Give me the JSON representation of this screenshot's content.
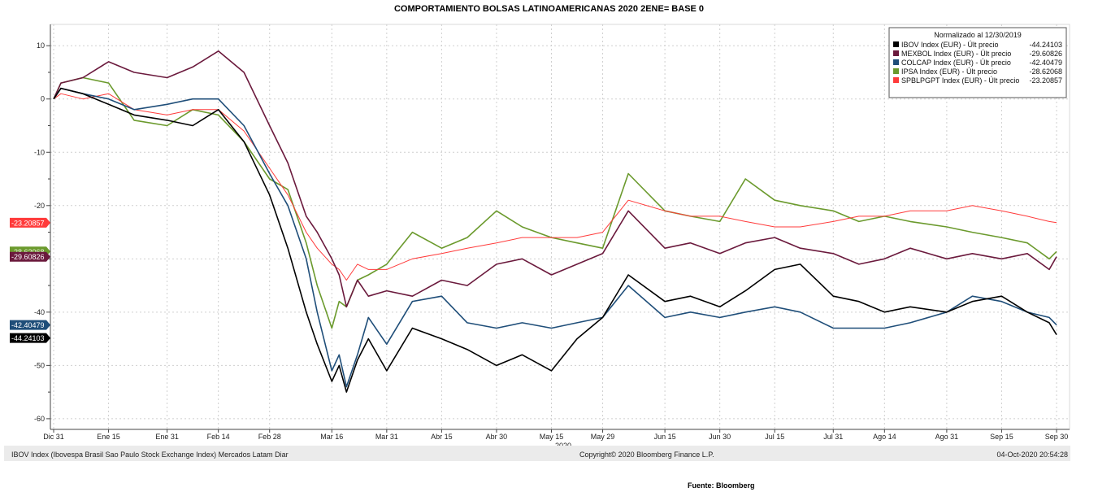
{
  "chart_data": {
    "type": "line",
    "title": "COMPORTAMIENTO BOLSAS LATINOAMERICANAS 2020   2ENE= BASE 0",
    "year_label": "2020",
    "x_ticks": [
      "Dic 31",
      "Ene 15",
      "Ene 31",
      "Feb 14",
      "Feb 28",
      "Mar 16",
      "Mar 31",
      "Abr 15",
      "Abr 30",
      "May 15",
      "May 29",
      "Jun 15",
      "Jun 30",
      "Jul 15",
      "Jul 31",
      "Ago 14",
      "Ago 31",
      "Sep 15",
      "Sep 30"
    ],
    "y_ticks": [
      10,
      0,
      -10,
      -20,
      -30,
      -40,
      -50,
      -60
    ],
    "ylim": [
      -62,
      14
    ],
    "grid": true,
    "legend_position": "top-right",
    "legend_header": "Normalizado al 12/30/2019",
    "series": [
      {
        "name": "IBOV Index (EUR) - Últ precio",
        "last_value": "-44.24103",
        "color": "#000000",
        "x": [
          "2019-12-31",
          "2020-01-02",
          "2020-01-08",
          "2020-01-15",
          "2020-01-22",
          "2020-01-31",
          "2020-02-07",
          "2020-02-14",
          "2020-02-21",
          "2020-02-28",
          "2020-03-04",
          "2020-03-09",
          "2020-03-12",
          "2020-03-16",
          "2020-03-18",
          "2020-03-20",
          "2020-03-23",
          "2020-03-26",
          "2020-03-31",
          "2020-04-07",
          "2020-04-15",
          "2020-04-22",
          "2020-04-30",
          "2020-05-07",
          "2020-05-15",
          "2020-05-22",
          "2020-05-29",
          "2020-06-05",
          "2020-06-15",
          "2020-06-22",
          "2020-06-30",
          "2020-07-07",
          "2020-07-15",
          "2020-07-22",
          "2020-07-31",
          "2020-08-07",
          "2020-08-14",
          "2020-08-21",
          "2020-08-31",
          "2020-09-07",
          "2020-09-15",
          "2020-09-22",
          "2020-09-28",
          "2020-09-30"
        ],
        "y": [
          0,
          2,
          1,
          -1,
          -3,
          -4,
          -5,
          -2,
          -8,
          -18,
          -28,
          -40,
          -46,
          -53,
          -50,
          -55,
          -49,
          -45,
          -51,
          -43,
          -45,
          -47,
          -50,
          -48,
          -51,
          -45,
          -41,
          -33,
          -38,
          -37,
          -39,
          -36,
          -32,
          -31,
          -37,
          -38,
          -40,
          -39,
          -40,
          -38,
          -37,
          -40,
          -42,
          -44.24103
        ]
      },
      {
        "name": "MEXBOL Index (EUR) - Últ precio",
        "last_value": "-29.60826",
        "color": "#6b1a3d",
        "x": [
          "2019-12-31",
          "2020-01-02",
          "2020-01-08",
          "2020-01-15",
          "2020-01-22",
          "2020-01-31",
          "2020-02-07",
          "2020-02-14",
          "2020-02-21",
          "2020-02-28",
          "2020-03-04",
          "2020-03-09",
          "2020-03-12",
          "2020-03-16",
          "2020-03-18",
          "2020-03-20",
          "2020-03-23",
          "2020-03-26",
          "2020-03-31",
          "2020-04-07",
          "2020-04-15",
          "2020-04-22",
          "2020-04-30",
          "2020-05-07",
          "2020-05-15",
          "2020-05-22",
          "2020-05-29",
          "2020-06-05",
          "2020-06-15",
          "2020-06-22",
          "2020-06-30",
          "2020-07-07",
          "2020-07-15",
          "2020-07-22",
          "2020-07-31",
          "2020-08-07",
          "2020-08-14",
          "2020-08-21",
          "2020-08-31",
          "2020-09-07",
          "2020-09-15",
          "2020-09-22",
          "2020-09-28",
          "2020-09-30"
        ],
        "y": [
          0,
          3,
          4,
          7,
          5,
          4,
          6,
          9,
          5,
          -5,
          -12,
          -22,
          -25,
          -30,
          -33,
          -39,
          -34,
          -37,
          -36,
          -37,
          -34,
          -35,
          -31,
          -30,
          -33,
          -31,
          -29,
          -21,
          -28,
          -27,
          -29,
          -27,
          -26,
          -28,
          -29,
          -31,
          -30,
          -28,
          -30,
          -29,
          -30,
          -29,
          -32,
          -29.60826
        ]
      },
      {
        "name": "COLCAP Index (EUR) - Últ precio",
        "last_value": "-42.40479",
        "color": "#1f4e79",
        "x": [
          "2019-12-31",
          "2020-01-02",
          "2020-01-08",
          "2020-01-15",
          "2020-01-22",
          "2020-01-31",
          "2020-02-07",
          "2020-02-14",
          "2020-02-21",
          "2020-02-28",
          "2020-03-04",
          "2020-03-09",
          "2020-03-12",
          "2020-03-16",
          "2020-03-18",
          "2020-03-20",
          "2020-03-23",
          "2020-03-26",
          "2020-03-31",
          "2020-04-07",
          "2020-04-15",
          "2020-04-22",
          "2020-04-30",
          "2020-05-07",
          "2020-05-15",
          "2020-05-22",
          "2020-05-29",
          "2020-06-05",
          "2020-06-15",
          "2020-06-22",
          "2020-06-30",
          "2020-07-07",
          "2020-07-15",
          "2020-07-22",
          "2020-07-31",
          "2020-08-07",
          "2020-08-14",
          "2020-08-21",
          "2020-08-31",
          "2020-09-07",
          "2020-09-15",
          "2020-09-22",
          "2020-09-28",
          "2020-09-30"
        ],
        "y": [
          0,
          2,
          1,
          0,
          -2,
          -1,
          0,
          0,
          -5,
          -14,
          -20,
          -30,
          -40,
          -51,
          -48,
          -54,
          -48,
          -41,
          -46,
          -38,
          -37,
          -42,
          -43,
          -42,
          -43,
          -42,
          -41,
          -35,
          -41,
          -40,
          -41,
          -40,
          -39,
          -40,
          -43,
          -43,
          -43,
          -42,
          -40,
          -37,
          -38,
          -40,
          -41,
          -42.40479
        ]
      },
      {
        "name": "IPSA Index (EUR) - Últ precio",
        "last_value": "-28.62068",
        "color": "#6b9a2d",
        "x": [
          "2019-12-31",
          "2020-01-02",
          "2020-01-08",
          "2020-01-15",
          "2020-01-22",
          "2020-01-31",
          "2020-02-07",
          "2020-02-14",
          "2020-02-21",
          "2020-02-28",
          "2020-03-04",
          "2020-03-09",
          "2020-03-12",
          "2020-03-16",
          "2020-03-18",
          "2020-03-20",
          "2020-03-23",
          "2020-03-26",
          "2020-03-31",
          "2020-04-07",
          "2020-04-15",
          "2020-04-22",
          "2020-04-30",
          "2020-05-07",
          "2020-05-15",
          "2020-05-22",
          "2020-05-29",
          "2020-06-05",
          "2020-06-15",
          "2020-06-22",
          "2020-06-30",
          "2020-07-07",
          "2020-07-15",
          "2020-07-22",
          "2020-07-31",
          "2020-08-07",
          "2020-08-14",
          "2020-08-21",
          "2020-08-31",
          "2020-09-07",
          "2020-09-15",
          "2020-09-22",
          "2020-09-28",
          "2020-09-30"
        ],
        "y": [
          0,
          3,
          4,
          3,
          -4,
          -5,
          -2,
          -3,
          -8,
          -15,
          -17,
          -27,
          -35,
          -43,
          -38,
          -39,
          -34,
          -33,
          -31,
          -25,
          -28,
          -26,
          -21,
          -24,
          -26,
          -27,
          -28,
          -14,
          -21,
          -22,
          -23,
          -15,
          -19,
          -20,
          -21,
          -23,
          -22,
          -23,
          -24,
          -25,
          -26,
          -27,
          -30,
          -28.62068
        ]
      },
      {
        "name": "SPBLPGPT Index (EUR) - Últ precio",
        "last_value": "-23.20857",
        "color": "#ff3b3b",
        "x": [
          "2019-12-31",
          "2020-01-02",
          "2020-01-08",
          "2020-01-15",
          "2020-01-22",
          "2020-01-31",
          "2020-02-07",
          "2020-02-14",
          "2020-02-21",
          "2020-02-28",
          "2020-03-04",
          "2020-03-09",
          "2020-03-12",
          "2020-03-16",
          "2020-03-18",
          "2020-03-20",
          "2020-03-23",
          "2020-03-26",
          "2020-03-31",
          "2020-04-07",
          "2020-04-15",
          "2020-04-22",
          "2020-04-30",
          "2020-05-07",
          "2020-05-15",
          "2020-05-22",
          "2020-05-29",
          "2020-06-05",
          "2020-06-15",
          "2020-06-22",
          "2020-06-30",
          "2020-07-07",
          "2020-07-15",
          "2020-07-22",
          "2020-07-31",
          "2020-08-07",
          "2020-08-14",
          "2020-08-21",
          "2020-08-31",
          "2020-09-07",
          "2020-09-15",
          "2020-09-22",
          "2020-09-28",
          "2020-09-30"
        ],
        "y": [
          0,
          1,
          0,
          1,
          -2,
          -3,
          -2,
          -2,
          -6,
          -13,
          -18,
          -25,
          -28,
          -31,
          -32,
          -34,
          -31,
          -32,
          -32,
          -30,
          -29,
          -28,
          -27,
          -26,
          -26,
          -26,
          -25,
          -19,
          -21,
          -22,
          -22,
          -23,
          -24,
          -24,
          -23,
          -22,
          -22,
          -21,
          -21,
          -20,
          -21,
          -22,
          -23,
          -23.20857
        ]
      }
    ]
  },
  "footer": {
    "left": "IBOV Index (Ibovespa Brasil Sao Paulo Stock Exchange Index) Mercados Latam  Diar",
    "center": "Copyright© 2020 Bloomberg Finance L.P.",
    "right": "04-Oct-2020 20:54:28"
  },
  "source": "Fuente: Bloomberg"
}
